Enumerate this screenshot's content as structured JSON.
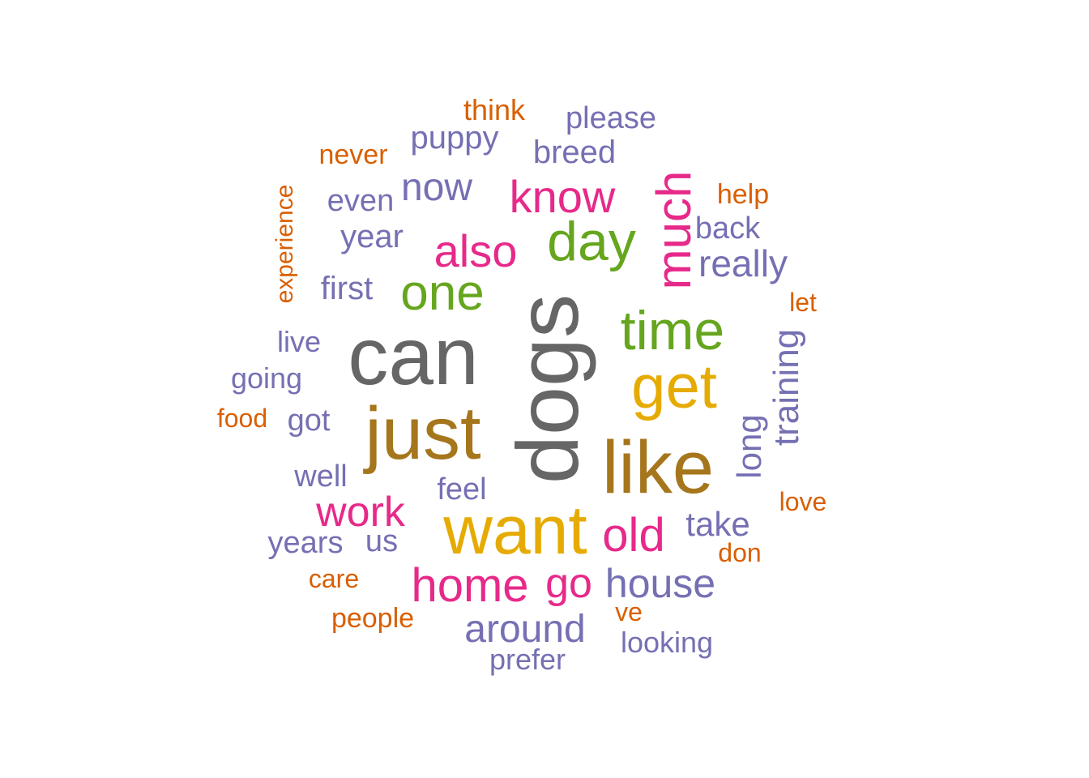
{
  "palette": {
    "gray": "#666666",
    "olive": "#A6761D",
    "gold": "#E6AB02",
    "green": "#66A61E",
    "magenta": "#E7298A",
    "purple": "#7570B3",
    "orange": "#D95F02"
  },
  "words": [
    {
      "text": "dogs",
      "color": "gray",
      "rotated": true
    },
    {
      "text": "can",
      "color": "gray"
    },
    {
      "text": "just",
      "color": "olive"
    },
    {
      "text": "like",
      "color": "olive"
    },
    {
      "text": "want",
      "color": "gold"
    },
    {
      "text": "get",
      "color": "gold"
    },
    {
      "text": "time",
      "color": "green"
    },
    {
      "text": "day",
      "color": "green"
    },
    {
      "text": "one",
      "color": "green"
    },
    {
      "text": "much",
      "color": "magenta",
      "rotated": true
    },
    {
      "text": "know",
      "color": "magenta"
    },
    {
      "text": "also",
      "color": "magenta"
    },
    {
      "text": "home",
      "color": "magenta"
    },
    {
      "text": "old",
      "color": "magenta"
    },
    {
      "text": "go",
      "color": "magenta"
    },
    {
      "text": "work",
      "color": "magenta"
    },
    {
      "text": "house",
      "color": "purple"
    },
    {
      "text": "around",
      "color": "purple"
    },
    {
      "text": "now",
      "color": "purple"
    },
    {
      "text": "really",
      "color": "purple"
    },
    {
      "text": "training",
      "color": "purple",
      "rotated": true
    },
    {
      "text": "long",
      "color": "purple",
      "rotated": true
    },
    {
      "text": "take",
      "color": "purple"
    },
    {
      "text": "puppy",
      "color": "purple"
    },
    {
      "text": "breed",
      "color": "purple"
    },
    {
      "text": "please",
      "color": "purple"
    },
    {
      "text": "even",
      "color": "purple"
    },
    {
      "text": "year",
      "color": "purple"
    },
    {
      "text": "back",
      "color": "purple"
    },
    {
      "text": "first",
      "color": "purple"
    },
    {
      "text": "live",
      "color": "purple"
    },
    {
      "text": "going",
      "color": "purple"
    },
    {
      "text": "got",
      "color": "purple"
    },
    {
      "text": "well",
      "color": "purple"
    },
    {
      "text": "feel",
      "color": "purple"
    },
    {
      "text": "years",
      "color": "purple"
    },
    {
      "text": "us",
      "color": "purple"
    },
    {
      "text": "looking",
      "color": "purple"
    },
    {
      "text": "prefer",
      "color": "purple"
    },
    {
      "text": "think",
      "color": "orange"
    },
    {
      "text": "never",
      "color": "orange"
    },
    {
      "text": "help",
      "color": "orange"
    },
    {
      "text": "experience",
      "color": "orange",
      "rotated": true
    },
    {
      "text": "let",
      "color": "orange"
    },
    {
      "text": "food",
      "color": "orange"
    },
    {
      "text": "love",
      "color": "orange"
    },
    {
      "text": "don",
      "color": "orange"
    },
    {
      "text": "care",
      "color": "orange"
    },
    {
      "text": "people",
      "color": "orange"
    },
    {
      "text": "ve",
      "color": "orange"
    }
  ]
}
